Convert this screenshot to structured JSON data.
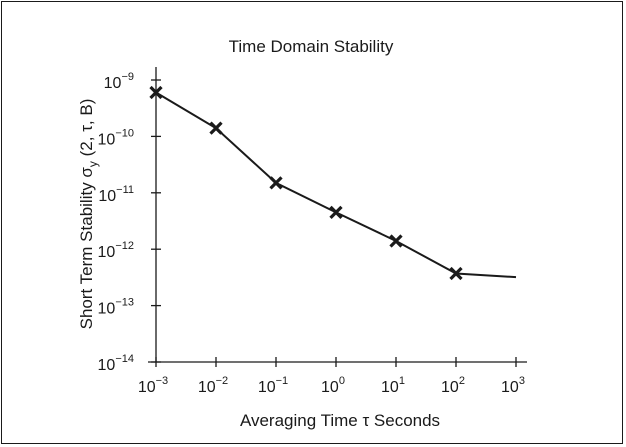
{
  "chart_data": {
    "type": "line",
    "title": "Time Domain Stability",
    "xlabel": "Averaging Time τ Seconds",
    "ylabel": "Short Term Stability σ_y (2, τ, B)",
    "ylabel_parts": {
      "before": "Short Term Stability σ",
      "subscript": "y",
      "after": " (2, τ, B)"
    },
    "xscale": "log",
    "yscale": "log",
    "xlim": [
      0.001,
      1000
    ],
    "ylim": [
      1e-14,
      1e-09
    ],
    "x_ticks": [
      {
        "value": 0.001,
        "base": "10",
        "exp": "−3"
      },
      {
        "value": 0.01,
        "base": "10",
        "exp": "−2"
      },
      {
        "value": 0.1,
        "base": "10",
        "exp": "−1"
      },
      {
        "value": 1,
        "base": "10",
        "exp": "0"
      },
      {
        "value": 10,
        "base": "10",
        "exp": "1"
      },
      {
        "value": 100,
        "base": "10",
        "exp": "2"
      },
      {
        "value": 1000,
        "base": "10",
        "exp": "3"
      }
    ],
    "y_ticks": [
      {
        "value": 1e-09,
        "base": "10",
        "exp": "−9"
      },
      {
        "value": 1e-10,
        "base": "10",
        "exp": "−10"
      },
      {
        "value": 1e-11,
        "base": "10",
        "exp": "−11"
      },
      {
        "value": 1e-12,
        "base": "10",
        "exp": "−12"
      },
      {
        "value": 1e-13,
        "base": "10",
        "exp": "−13"
      },
      {
        "value": 1e-14,
        "base": "10",
        "exp": "−14"
      }
    ],
    "grid": false,
    "series": [
      {
        "marker": "x",
        "points": [
          {
            "x": 0.001,
            "y": 6e-10
          },
          {
            "x": 0.01,
            "y": 1.4e-10
          },
          {
            "x": 0.1,
            "y": 1.5e-11
          },
          {
            "x": 1,
            "y": 4.5e-12
          },
          {
            "x": 10,
            "y": 1.4e-12
          },
          {
            "x": 100,
            "y": 3.7e-13
          }
        ],
        "line_end": {
          "x": 1000,
          "y": 3.2e-13
        }
      }
    ],
    "colors": {
      "ink": "#1a1a1a",
      "background": "#ffffff"
    }
  }
}
